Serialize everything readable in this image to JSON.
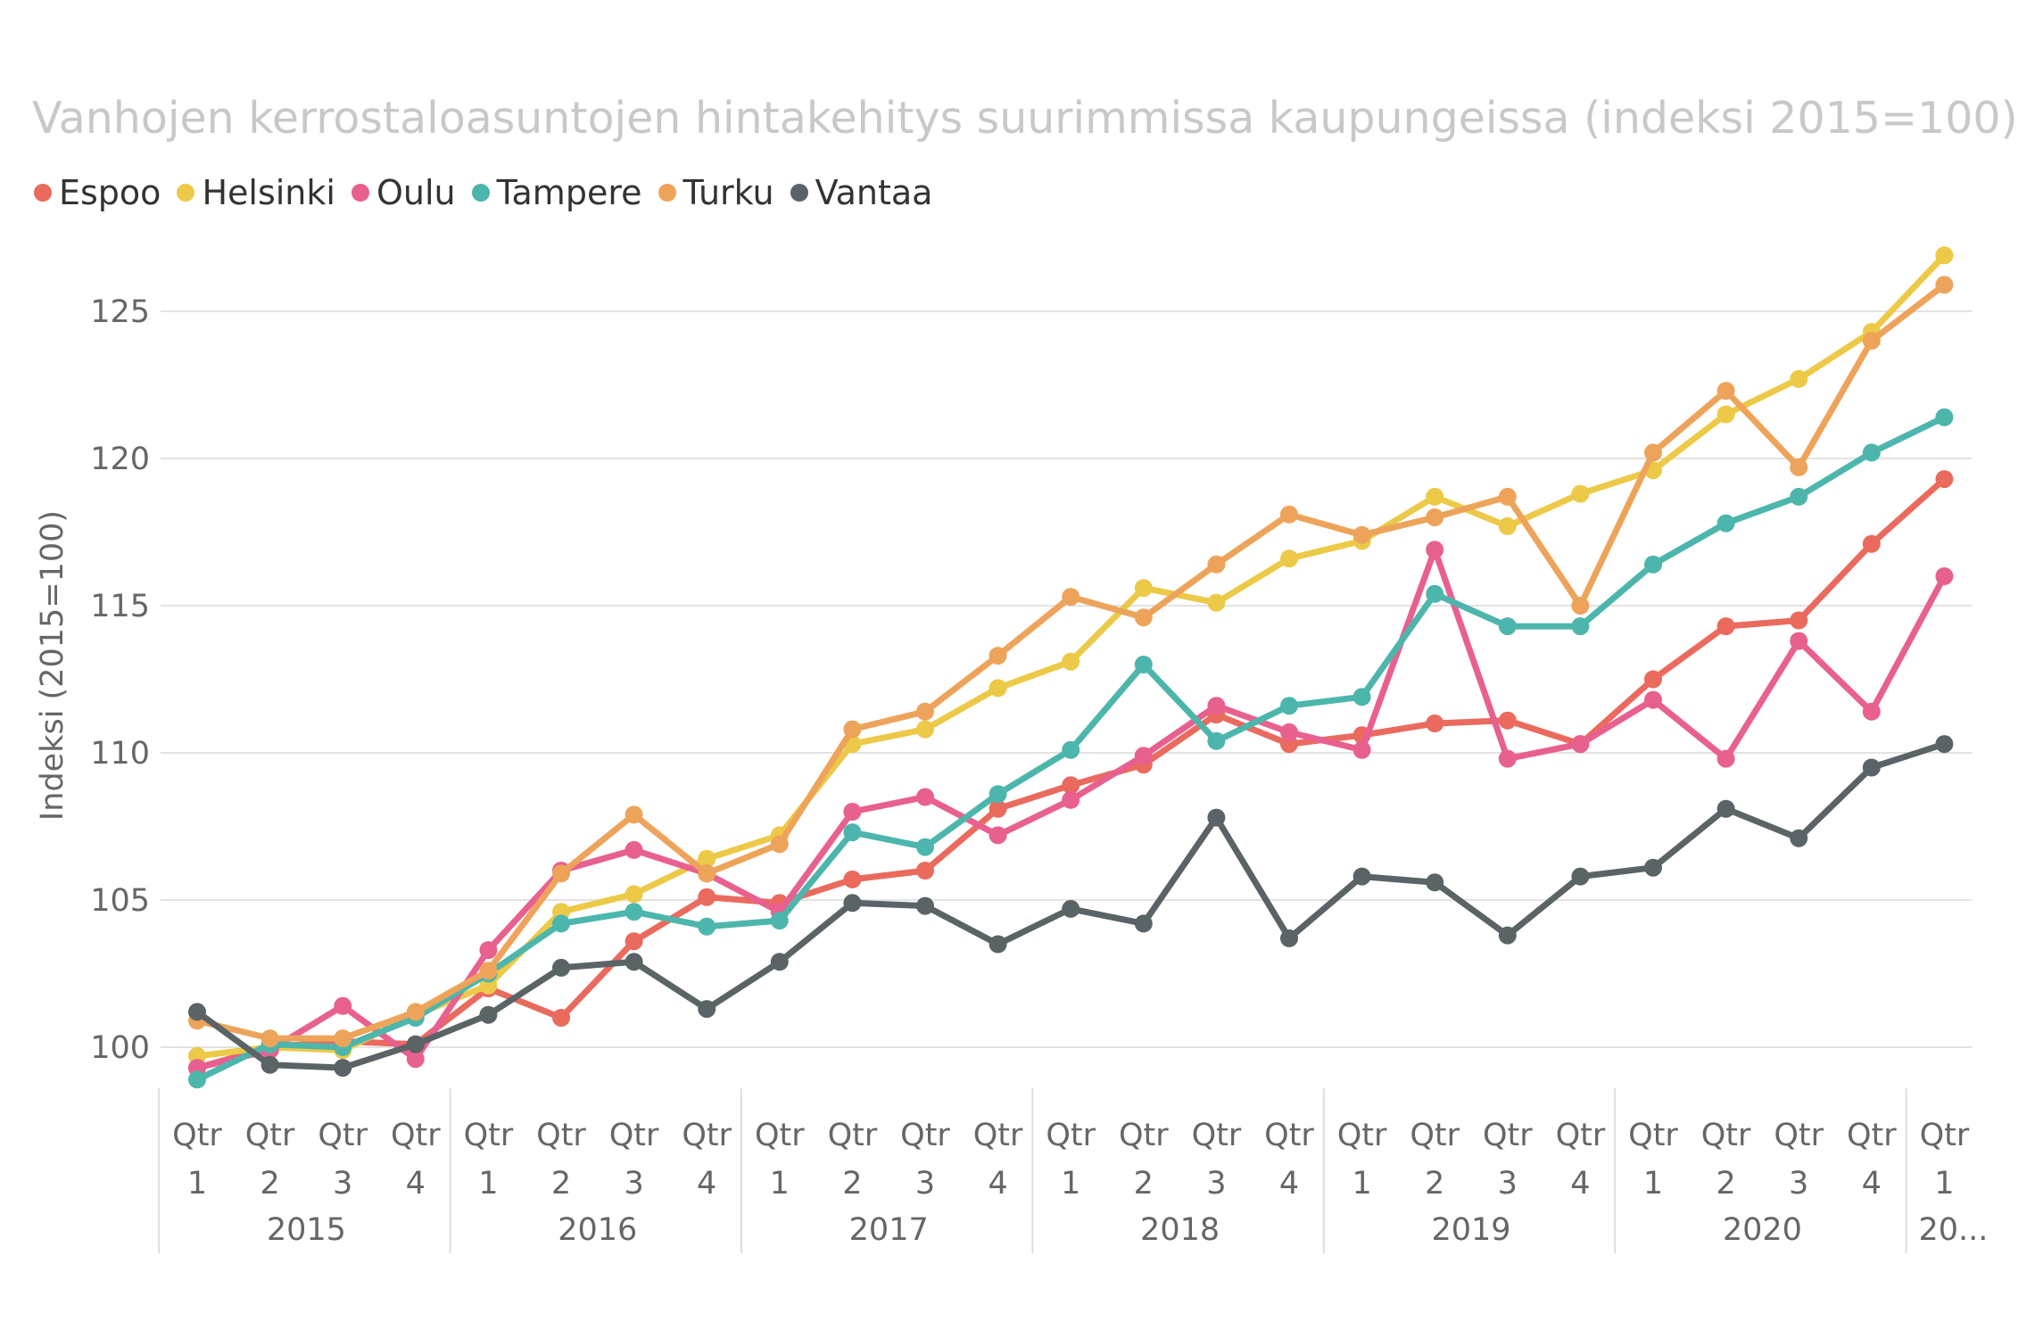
{
  "chart_data": {
    "type": "line",
    "title": "Vanhojen kerrostaloasuntojen hintakehitys suurimmissa kaupungeissa (indeksi 2015=100)",
    "ylabel": "Indeksi (2015=100)",
    "ylim": [
      99,
      127
    ],
    "yticks": [
      100,
      105,
      110,
      115,
      120,
      125
    ],
    "grid": true,
    "legend_position": "top-left",
    "x_quarter_labels": [
      "Qtr 1",
      "Qtr 2",
      "Qtr 3",
      "Qtr 4",
      "Qtr 1",
      "Qtr 2",
      "Qtr 3",
      "Qtr 4",
      "Qtr 1",
      "Qtr 2",
      "Qtr 3",
      "Qtr 4",
      "Qtr 1",
      "Qtr 2",
      "Qtr 3",
      "Qtr 4",
      "Qtr 1",
      "Qtr 2",
      "Qtr 3",
      "Qtr 4",
      "Qtr 1",
      "Qtr 2",
      "Qtr 3",
      "Qtr 4",
      "Qtr 1"
    ],
    "x_year_groups": [
      {
        "label": "2015",
        "count": 4
      },
      {
        "label": "2016",
        "count": 4
      },
      {
        "label": "2017",
        "count": 4
      },
      {
        "label": "2018",
        "count": 4
      },
      {
        "label": "2019",
        "count": 4
      },
      {
        "label": "2020",
        "count": 4
      },
      {
        "label": "20...",
        "count": 1
      }
    ],
    "series": [
      {
        "name": "Espoo",
        "color": "#EA6A5E",
        "values": [
          99.3,
          100.0,
          100.2,
          100.1,
          102.0,
          101.0,
          103.6,
          105.1,
          104.9,
          105.7,
          106.0,
          108.1,
          108.9,
          109.6,
          111.3,
          110.3,
          110.6,
          111.0,
          111.1,
          110.3,
          112.5,
          114.3,
          114.5,
          117.1,
          119.3
        ]
      },
      {
        "name": "Helsinki",
        "color": "#EDC948",
        "values": [
          99.7,
          100.0,
          99.9,
          101.1,
          102.1,
          104.6,
          105.2,
          106.4,
          107.2,
          110.3,
          110.8,
          112.2,
          113.1,
          115.6,
          115.1,
          116.6,
          117.2,
          118.7,
          117.7,
          118.8,
          119.6,
          121.5,
          122.7,
          124.3,
          126.9
        ]
      },
      {
        "name": "Oulu",
        "color": "#E8608F",
        "values": [
          99.3,
          99.9,
          101.4,
          99.6,
          103.3,
          106.0,
          106.7,
          105.9,
          104.6,
          108.0,
          108.5,
          107.2,
          108.4,
          109.9,
          111.6,
          110.7,
          110.1,
          116.9,
          109.8,
          110.3,
          111.8,
          109.8,
          113.8,
          111.4,
          116.0
        ]
      },
      {
        "name": "Tampere",
        "color": "#4DB6AC",
        "values": [
          98.9,
          100.1,
          100.0,
          101.0,
          102.5,
          104.2,
          104.6,
          104.1,
          104.3,
          107.3,
          106.8,
          108.6,
          110.1,
          113.0,
          110.4,
          111.6,
          111.9,
          115.4,
          114.3,
          114.3,
          116.4,
          117.8,
          118.7,
          120.2,
          121.4
        ]
      },
      {
        "name": "Turku",
        "color": "#EDA45A",
        "values": [
          100.9,
          100.3,
          100.3,
          101.2,
          102.6,
          105.9,
          107.9,
          105.9,
          106.9,
          110.8,
          111.4,
          113.3,
          115.3,
          114.6,
          116.4,
          118.1,
          117.4,
          118.0,
          118.7,
          115.0,
          120.2,
          122.3,
          119.7,
          124.0,
          125.9
        ]
      },
      {
        "name": "Vantaa",
        "color": "#5A6366",
        "values": [
          101.2,
          99.4,
          99.3,
          100.1,
          101.1,
          102.7,
          102.9,
          101.3,
          102.9,
          104.9,
          104.8,
          103.5,
          104.7,
          104.2,
          107.8,
          103.7,
          105.8,
          105.6,
          103.8,
          105.8,
          106.1,
          108.1,
          107.1,
          109.5,
          110.3
        ]
      }
    ]
  }
}
